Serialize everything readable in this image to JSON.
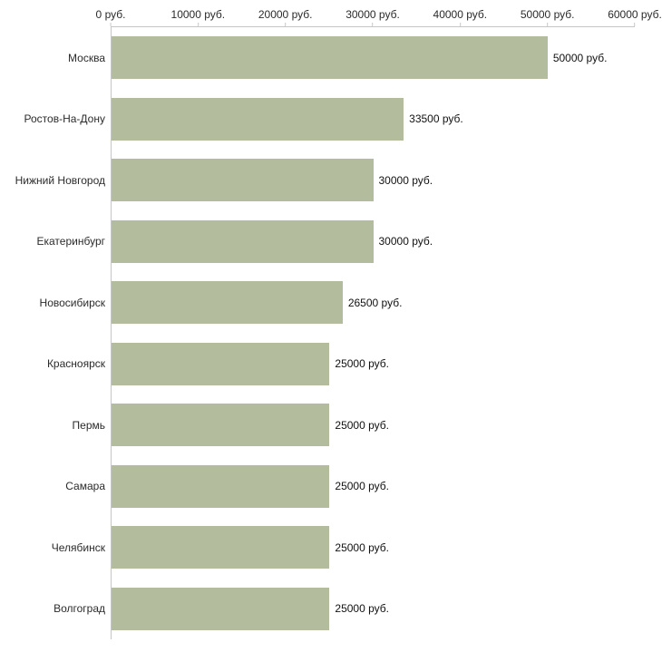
{
  "chart_data": {
    "type": "bar",
    "orientation": "horizontal",
    "title": "",
    "xlabel": "",
    "ylabel": "",
    "categories": [
      "Москва",
      "Ростов-На-Дону",
      "Нижний Новгород",
      "Екатеринбург",
      "Новосибирск",
      "Красноярск",
      "Пермь",
      "Самара",
      "Челябинск",
      "Волгоград"
    ],
    "values": [
      50000,
      33500,
      30000,
      30000,
      26500,
      25000,
      25000,
      25000,
      25000,
      25000
    ],
    "value_labels": [
      "50000 руб.",
      "33500 руб.",
      "30000 руб.",
      "30000 руб.",
      "26500 руб.",
      "25000 руб.",
      "25000 руб.",
      "25000 руб.",
      "25000 руб.",
      "25000 руб."
    ],
    "xlim": [
      0,
      60000
    ],
    "x_ticks": [
      0,
      10000,
      20000,
      30000,
      40000,
      50000,
      60000
    ],
    "x_tick_labels": [
      "0 руб.",
      "10000 руб.",
      "20000 руб.",
      "30000 руб.",
      "40000 руб.",
      "50000 руб.",
      "60000 руб."
    ],
    "bar_color": "#b3bd9e",
    "axis_color": "#c6c6c6",
    "grid": false,
    "legend": false,
    "axis_position": "top"
  }
}
